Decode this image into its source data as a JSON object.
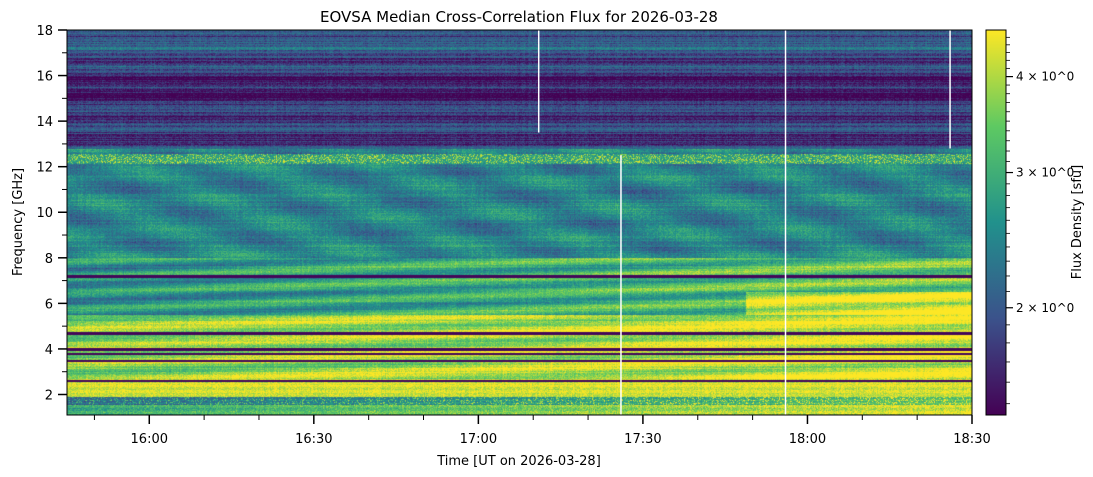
{
  "chart_data": {
    "type": "heatmap",
    "title": "EOVSA Median Cross-Correlation Flux for 2026-03-28",
    "xlabel": "Time [UT on 2026-03-28]",
    "ylabel": "Frequency [GHz]",
    "x_ticks": [
      "16:00",
      "16:30",
      "17:00",
      "17:30",
      "18:00",
      "18:30"
    ],
    "y_ticks": [
      "2",
      "4",
      "6",
      "8",
      "10",
      "12",
      "14",
      "16",
      "18"
    ],
    "xlim": [
      "15:45",
      "18:30"
    ],
    "ylim": [
      1.1,
      18
    ],
    "colorbar": {
      "label": "Flux Density [sfu]",
      "scale": "log",
      "range": [
        1.45,
        4.6
      ],
      "tick_labels": [
        "2 × 10^0",
        "3 × 10^0",
        "4 × 10^0"
      ],
      "tick_values": [
        2,
        3,
        4
      ],
      "colormap": "viridis"
    },
    "features": {
      "bright_low_band_ghz": [
        1.1,
        5.5
      ],
      "dark_lines_ghz": [
        2.6,
        3.5,
        3.8,
        4.0,
        4.7,
        7.2
      ],
      "high_freq_dim_band_ghz": [
        13,
        18
      ],
      "rfi_band_ghz": 12.4,
      "white_gap_lines": [
        {
          "time": "17:11",
          "freq_range_ghz": [
            13.5,
            18
          ]
        },
        {
          "time": "17:26",
          "freq_range_ghz": [
            1.1,
            12.5
          ]
        },
        {
          "time": "17:56",
          "freq_range_ghz": [
            1.1,
            18
          ]
        },
        {
          "time": "18:26",
          "freq_range_ghz": [
            12.8,
            18
          ]
        }
      ]
    }
  }
}
